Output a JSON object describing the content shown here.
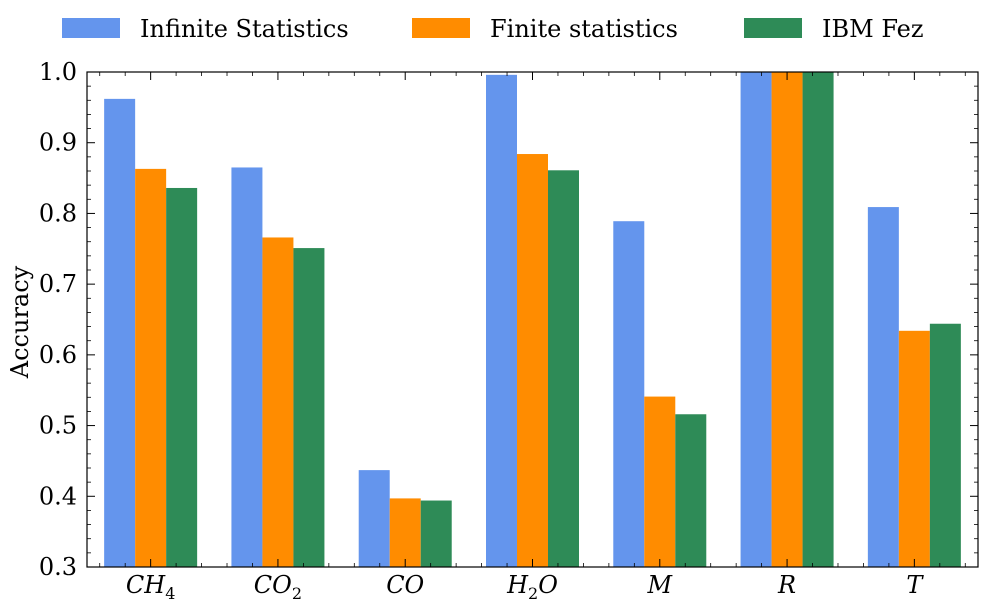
{
  "chart_data": {
    "type": "bar",
    "title": "",
    "xlabel": "",
    "ylabel": "Accuracy",
    "ylim": [
      0.3,
      1.0
    ],
    "yticks": [
      "0.3",
      "0.4",
      "0.5",
      "0.6",
      "0.7",
      "0.8",
      "0.9",
      "1.0"
    ],
    "legend_position": "top",
    "grid": false,
    "categories": [
      {
        "base": "CH",
        "sub": "4",
        "after": ""
      },
      {
        "base": "CO",
        "sub": "2",
        "after": ""
      },
      {
        "base": "CO",
        "sub": "",
        "after": ""
      },
      {
        "base": "H",
        "sub": "2",
        "after": "O"
      },
      {
        "base": "M",
        "sub": "",
        "after": ""
      },
      {
        "base": "R",
        "sub": "",
        "after": ""
      },
      {
        "base": "T",
        "sub": "",
        "after": ""
      }
    ],
    "series": [
      {
        "name": "Infinite Statistics",
        "color": "#6495ED",
        "values": [
          0.962,
          0.865,
          0.437,
          0.996,
          0.789,
          1.0,
          0.809
        ]
      },
      {
        "name": "Finite statistics",
        "color": "#FF8C00",
        "values": [
          0.863,
          0.766,
          0.397,
          0.884,
          0.541,
          1.0,
          0.634
        ]
      },
      {
        "name": "IBM Fez",
        "color": "#2E8B57",
        "values": [
          0.836,
          0.751,
          0.394,
          0.861,
          0.516,
          1.0,
          0.644
        ]
      }
    ]
  }
}
